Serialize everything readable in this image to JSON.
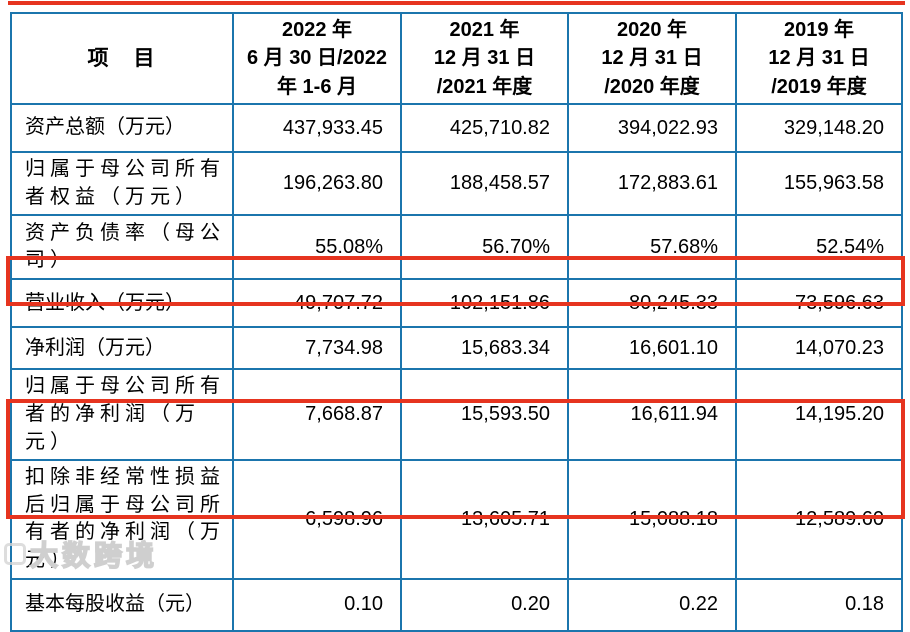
{
  "colors": {
    "table_border": "#1b75ad",
    "highlight_red": "#e6341f",
    "text": "#000000",
    "watermark_gray": "#cfcfcf"
  },
  "table": {
    "item_header": "项　目",
    "columns": [
      "2022 年\n6 月 30 日/2022\n年 1-6 月",
      "2021 年\n12 月 31 日\n/2021 年度",
      "2020 年\n12 月 31 日\n/2020 年度",
      "2019 年\n12 月 31 日\n/2019 年度"
    ],
    "rows": [
      {
        "label": "资产总额（万元）",
        "highlighted": false,
        "values": [
          "437,933.45",
          "425,710.82",
          "394,022.93",
          "329,148.20"
        ]
      },
      {
        "label": "归属于母公司所有者权益（万元）",
        "highlighted": false,
        "values": [
          "196,263.80",
          "188,458.57",
          "172,883.61",
          "155,963.58"
        ]
      },
      {
        "label": "资产负债率（母公司）",
        "highlighted": false,
        "values": [
          "55.08%",
          "56.70%",
          "57.68%",
          "52.54%"
        ]
      },
      {
        "label": "营业收入（万元）",
        "highlighted": true,
        "values": [
          "49,707.72",
          "102,151.86",
          "80,245.33",
          "73,596.63"
        ]
      },
      {
        "label": "净利润（万元）",
        "highlighted": false,
        "values": [
          "7,734.98",
          "15,683.34",
          "16,601.10",
          "14,070.23"
        ]
      },
      {
        "label": "归属于母公司所有者的净利润（万元）",
        "highlighted": false,
        "values": [
          "7,668.87",
          "15,593.50",
          "16,611.94",
          "14,195.20"
        ]
      },
      {
        "label": "扣除非经常性损益后归属于母公司所有者的净利润（万元）",
        "highlighted": true,
        "values": [
          "6,598.96",
          "13,605.71",
          "15,088.18",
          "12,589.60"
        ]
      },
      {
        "label": "基本每股收益（元）",
        "highlighted": false,
        "values": [
          "0.10",
          "0.20",
          "0.22",
          "0.18"
        ]
      }
    ]
  },
  "watermark": {
    "text": "大数跨境"
  }
}
